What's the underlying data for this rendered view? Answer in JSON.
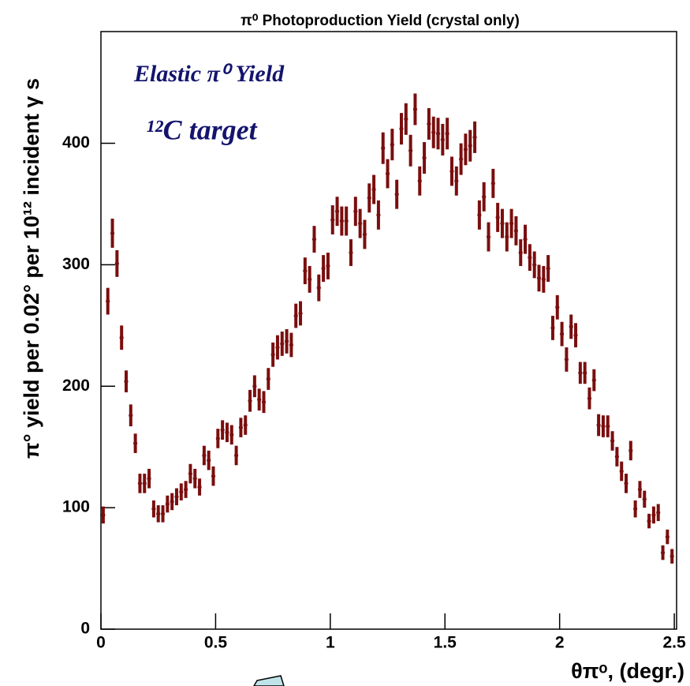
{
  "chart_data": {
    "type": "errorbar",
    "title": "π⁰ Photoproduction Yield (crystal only)",
    "y_label": "π° yield per 0.02° per 10¹² incident γ s",
    "x_label": "θπᵒ, (degr.)",
    "annotations": [
      "Elastic π⁰ Yield",
      "¹²C target"
    ],
    "color": "#7a0e0e",
    "xlim": [
      0,
      2.51
    ],
    "xticks": [
      0,
      0.5,
      1,
      1.5,
      2,
      2.5
    ],
    "ylim": [
      0,
      492
    ],
    "yticks": [
      0,
      100,
      200,
      300,
      400
    ],
    "x": [
      0.01,
      0.03,
      0.05,
      0.07,
      0.09,
      0.11,
      0.13,
      0.15,
      0.17,
      0.19,
      0.21,
      0.23,
      0.25,
      0.27,
      0.29,
      0.31,
      0.33,
      0.35,
      0.37,
      0.39,
      0.41,
      0.43,
      0.45,
      0.47,
      0.49,
      0.51,
      0.53,
      0.55,
      0.57,
      0.59,
      0.61,
      0.63,
      0.65,
      0.67,
      0.69,
      0.71,
      0.73,
      0.75,
      0.77,
      0.79,
      0.81,
      0.83,
      0.85,
      0.87,
      0.89,
      0.91,
      0.93,
      0.95,
      0.97,
      0.99,
      1.01,
      1.03,
      1.05,
      1.07,
      1.09,
      1.11,
      1.13,
      1.15,
      1.17,
      1.19,
      1.21,
      1.23,
      1.25,
      1.27,
      1.29,
      1.31,
      1.33,
      1.35,
      1.37,
      1.39,
      1.41,
      1.43,
      1.45,
      1.47,
      1.49,
      1.51,
      1.53,
      1.55,
      1.57,
      1.59,
      1.61,
      1.63,
      1.65,
      1.67,
      1.69,
      1.71,
      1.73,
      1.75,
      1.77,
      1.79,
      1.81,
      1.83,
      1.85,
      1.87,
      1.89,
      1.91,
      1.93,
      1.95,
      1.97,
      1.99,
      2.01,
      2.03,
      2.05,
      2.07,
      2.09,
      2.11,
      2.13,
      2.15,
      2.17,
      2.19,
      2.21,
      2.23,
      2.25,
      2.27,
      2.29,
      2.31,
      2.33,
      2.35,
      2.37,
      2.39,
      2.41,
      2.43,
      2.45,
      2.47,
      2.49
    ],
    "values": [
      94,
      270,
      326,
      301,
      240,
      204,
      176,
      153,
      120,
      120,
      124,
      99,
      95,
      95,
      103,
      105,
      109,
      113,
      115,
      128,
      124,
      117,
      143,
      139,
      126,
      157,
      164,
      162,
      160,
      143,
      166,
      168,
      188,
      200,
      189,
      187,
      206,
      226,
      232,
      235,
      237,
      234,
      258,
      260,
      295,
      288,
      321,
      281,
      297,
      299,
      337,
      344,
      336,
      336,
      310,
      344,
      334,
      325,
      355,
      362,
      341,
      396,
      375,
      399,
      358,
      412,
      420,
      394,
      428,
      369,
      388,
      416,
      409,
      408,
      403,
      408,
      377,
      369,
      387,
      395,
      398,
      405,
      341,
      356,
      323,
      367,
      339,
      334,
      323,
      334,
      328,
      310,
      321,
      306,
      300,
      289,
      288,
      297,
      248,
      265,
      243,
      222,
      249,
      242,
      211,
      211,
      190,
      205,
      168,
      167,
      167,
      155,
      142,
      130,
      120,
      147,
      99,
      115,
      107,
      89,
      94,
      96,
      63,
      76,
      60
    ],
    "errors": [
      7,
      11,
      12,
      11,
      10,
      9,
      9,
      8,
      8,
      8,
      8,
      7,
      7,
      7,
      7,
      7,
      7,
      7,
      7,
      8,
      8,
      7,
      8,
      8,
      8,
      8,
      8,
      8,
      8,
      8,
      8,
      8,
      9,
      9,
      9,
      9,
      9,
      10,
      10,
      10,
      10,
      10,
      10,
      10,
      11,
      11,
      11,
      11,
      11,
      11,
      12,
      12,
      12,
      12,
      11,
      12,
      12,
      12,
      12,
      12,
      12,
      13,
      12,
      13,
      12,
      13,
      13,
      13,
      13,
      12,
      13,
      13,
      13,
      13,
      13,
      13,
      12,
      12,
      13,
      13,
      13,
      13,
      12,
      12,
      12,
      12,
      12,
      12,
      12,
      12,
      12,
      11,
      12,
      11,
      11,
      11,
      11,
      11,
      10,
      10,
      10,
      10,
      10,
      10,
      9,
      9,
      9,
      9,
      9,
      9,
      9,
      8,
      8,
      8,
      8,
      8,
      7,
      7,
      7,
      6,
      7,
      7,
      6,
      6,
      6
    ]
  }
}
